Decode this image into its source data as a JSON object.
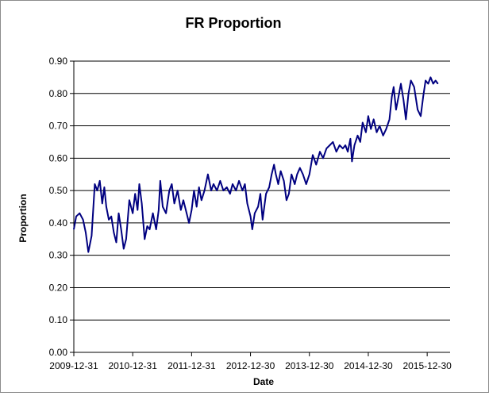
{
  "chart_data": {
    "type": "line",
    "title": "FR Proportion",
    "xlabel": "Date",
    "ylabel": "Proportion",
    "ylim": [
      0,
      0.9
    ],
    "y_ticks": [
      "0.00",
      "0.10",
      "0.20",
      "0.30",
      "0.40",
      "0.50",
      "0.60",
      "0.70",
      "0.80",
      "0.90"
    ],
    "x_range": [
      "2009-12-31",
      "2016-05-20"
    ],
    "x_ticks": [
      "2009-12-31",
      "2010-12-31",
      "2011-12-31",
      "2012-12-30",
      "2013-12-30",
      "2014-12-30",
      "2015-12-30"
    ],
    "grid": "horizontal",
    "line_color": "#000080",
    "series": [
      {
        "name": "",
        "points": [
          [
            "2009-12-31",
            0.38
          ],
          [
            "2010-01-15",
            0.42
          ],
          [
            "2010-02-05",
            0.43
          ],
          [
            "2010-02-26",
            0.41
          ],
          [
            "2010-03-15",
            0.37
          ],
          [
            "2010-03-31",
            0.31
          ],
          [
            "2010-04-20",
            0.36
          ],
          [
            "2010-05-10",
            0.52
          ],
          [
            "2010-05-25",
            0.5
          ],
          [
            "2010-06-10",
            0.53
          ],
          [
            "2010-06-25",
            0.46
          ],
          [
            "2010-07-08",
            0.51
          ],
          [
            "2010-07-20",
            0.45
          ],
          [
            "2010-08-05",
            0.41
          ],
          [
            "2010-08-20",
            0.42
          ],
          [
            "2010-09-05",
            0.37
          ],
          [
            "2010-09-20",
            0.34
          ],
          [
            "2010-10-05",
            0.43
          ],
          [
            "2010-10-20",
            0.38
          ],
          [
            "2010-11-05",
            0.32
          ],
          [
            "2010-11-20",
            0.35
          ],
          [
            "2010-12-10",
            0.47
          ],
          [
            "2010-12-31",
            0.43
          ],
          [
            "2011-01-15",
            0.49
          ],
          [
            "2011-01-30",
            0.44
          ],
          [
            "2011-02-10",
            0.52
          ],
          [
            "2011-02-25",
            0.46
          ],
          [
            "2011-03-15",
            0.35
          ],
          [
            "2011-03-31",
            0.39
          ],
          [
            "2011-04-15",
            0.38
          ],
          [
            "2011-05-05",
            0.43
          ],
          [
            "2011-05-25",
            0.38
          ],
          [
            "2011-06-10",
            0.44
          ],
          [
            "2011-06-20",
            0.53
          ],
          [
            "2011-07-05",
            0.45
          ],
          [
            "2011-07-25",
            0.43
          ],
          [
            "2011-08-15",
            0.5
          ],
          [
            "2011-08-30",
            0.52
          ],
          [
            "2011-09-15",
            0.46
          ],
          [
            "2011-10-05",
            0.5
          ],
          [
            "2011-10-25",
            0.44
          ],
          [
            "2011-11-10",
            0.47
          ],
          [
            "2011-11-30",
            0.43
          ],
          [
            "2011-12-15",
            0.4
          ],
          [
            "2011-12-31",
            0.44
          ],
          [
            "2012-01-15",
            0.5
          ],
          [
            "2012-01-31",
            0.45
          ],
          [
            "2012-02-15",
            0.51
          ],
          [
            "2012-03-01",
            0.47
          ],
          [
            "2012-03-20",
            0.5
          ],
          [
            "2012-04-10",
            0.55
          ],
          [
            "2012-04-30",
            0.5
          ],
          [
            "2012-05-15",
            0.52
          ],
          [
            "2012-06-05",
            0.5
          ],
          [
            "2012-06-25",
            0.53
          ],
          [
            "2012-07-15",
            0.5
          ],
          [
            "2012-08-05",
            0.51
          ],
          [
            "2012-08-25",
            0.49
          ],
          [
            "2012-09-10",
            0.52
          ],
          [
            "2012-10-01",
            0.5
          ],
          [
            "2012-10-20",
            0.53
          ],
          [
            "2012-11-10",
            0.5
          ],
          [
            "2012-11-25",
            0.52
          ],
          [
            "2012-12-10",
            0.46
          ],
          [
            "2012-12-30",
            0.42
          ],
          [
            "2013-01-10",
            0.38
          ],
          [
            "2013-01-25",
            0.43
          ],
          [
            "2013-02-15",
            0.45
          ],
          [
            "2013-03-01",
            0.49
          ],
          [
            "2013-03-15",
            0.41
          ],
          [
            "2013-04-05",
            0.49
          ],
          [
            "2013-04-25",
            0.51
          ],
          [
            "2013-05-10",
            0.55
          ],
          [
            "2013-05-25",
            0.58
          ],
          [
            "2013-06-05",
            0.55
          ],
          [
            "2013-06-20",
            0.52
          ],
          [
            "2013-07-05",
            0.56
          ],
          [
            "2013-07-25",
            0.53
          ],
          [
            "2013-08-10",
            0.47
          ],
          [
            "2013-08-25",
            0.49
          ],
          [
            "2013-09-10",
            0.55
          ],
          [
            "2013-09-30",
            0.52
          ],
          [
            "2013-10-15",
            0.55
          ],
          [
            "2013-11-01",
            0.57
          ],
          [
            "2013-11-20",
            0.55
          ],
          [
            "2013-12-10",
            0.52
          ],
          [
            "2013-12-30",
            0.55
          ],
          [
            "2014-01-20",
            0.61
          ],
          [
            "2014-02-10",
            0.58
          ],
          [
            "2014-03-05",
            0.62
          ],
          [
            "2014-03-25",
            0.6
          ],
          [
            "2014-04-15",
            0.63
          ],
          [
            "2014-05-05",
            0.64
          ],
          [
            "2014-05-25",
            0.65
          ],
          [
            "2014-06-15",
            0.62
          ],
          [
            "2014-07-05",
            0.64
          ],
          [
            "2014-07-25",
            0.63
          ],
          [
            "2014-08-10",
            0.64
          ],
          [
            "2014-08-25",
            0.62
          ],
          [
            "2014-09-10",
            0.66
          ],
          [
            "2014-09-20",
            0.59
          ],
          [
            "2014-10-05",
            0.64
          ],
          [
            "2014-10-25",
            0.67
          ],
          [
            "2014-11-10",
            0.65
          ],
          [
            "2014-11-25",
            0.71
          ],
          [
            "2014-12-15",
            0.68
          ],
          [
            "2014-12-30",
            0.73
          ],
          [
            "2015-01-15",
            0.69
          ],
          [
            "2015-02-01",
            0.72
          ],
          [
            "2015-02-20",
            0.68
          ],
          [
            "2015-03-10",
            0.7
          ],
          [
            "2015-04-01",
            0.67
          ],
          [
            "2015-04-20",
            0.69
          ],
          [
            "2015-05-10",
            0.72
          ],
          [
            "2015-05-25",
            0.79
          ],
          [
            "2015-06-05",
            0.82
          ],
          [
            "2015-06-20",
            0.75
          ],
          [
            "2015-07-05",
            0.79
          ],
          [
            "2015-07-20",
            0.83
          ],
          [
            "2015-08-05",
            0.78
          ],
          [
            "2015-08-20",
            0.72
          ],
          [
            "2015-09-05",
            0.8
          ],
          [
            "2015-09-20",
            0.84
          ],
          [
            "2015-10-10",
            0.82
          ],
          [
            "2015-11-01",
            0.75
          ],
          [
            "2015-11-20",
            0.73
          ],
          [
            "2015-12-05",
            0.79
          ],
          [
            "2015-12-20",
            0.84
          ],
          [
            "2016-01-05",
            0.83
          ],
          [
            "2016-01-20",
            0.85
          ],
          [
            "2016-02-05",
            0.83
          ],
          [
            "2016-02-20",
            0.84
          ],
          [
            "2016-03-05",
            0.83
          ]
        ]
      }
    ]
  }
}
